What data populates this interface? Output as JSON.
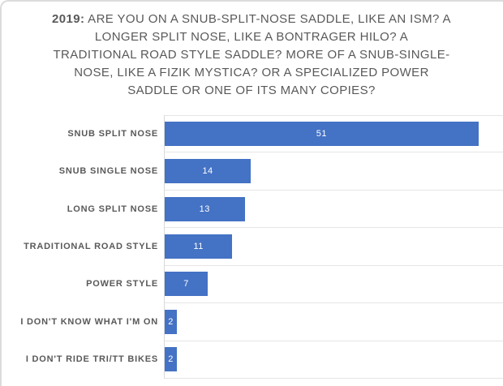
{
  "window": {
    "background": "#ffffff",
    "frame_border_color": "#dcdcdc"
  },
  "chart_data": {
    "type": "bar",
    "orientation": "horizontal",
    "title_prefix": "2019:",
    "title_rest": "ARE YOU ON A SNUB-SPLIT-NOSE SADDLE, LIKE AN ISM? A LONGER SPLIT NOSE, LIKE A BONTRAGER HILO? A TRADITIONAL ROAD STYLE SADDLE? MORE OF A SNUB-SINGLE-NOSE, LIKE A FIZIK MYSTICA? OR A SPECIALIZED POWER SADDLE OR ONE OF ITS MANY COPIES?",
    "categories": [
      "SNUB SPLIT NOSE",
      "SNUB SINGLE NOSE",
      "LONG SPLIT NOSE",
      "TRADITIONAL ROAD STYLE",
      "POWER STYLE",
      "I DON'T KNOW WHAT I'M ON",
      "I DON'T RIDE TRI/TT BIKES"
    ],
    "values": [
      51,
      14,
      13,
      11,
      7,
      2,
      2
    ],
    "xlim": [
      0,
      55
    ],
    "xlabel": "",
    "ylabel": "",
    "legend": "none",
    "value_axis_visible": false,
    "data_labels": "inside-center",
    "bar_color": "#4472c4",
    "data_label_color": "#ffffff",
    "category_label_color": "#595959",
    "title_color": "#595959",
    "gridline_color": "#e5e5e5",
    "axis_line_color": "#d9d9d9",
    "grid": "category-boundaries"
  }
}
